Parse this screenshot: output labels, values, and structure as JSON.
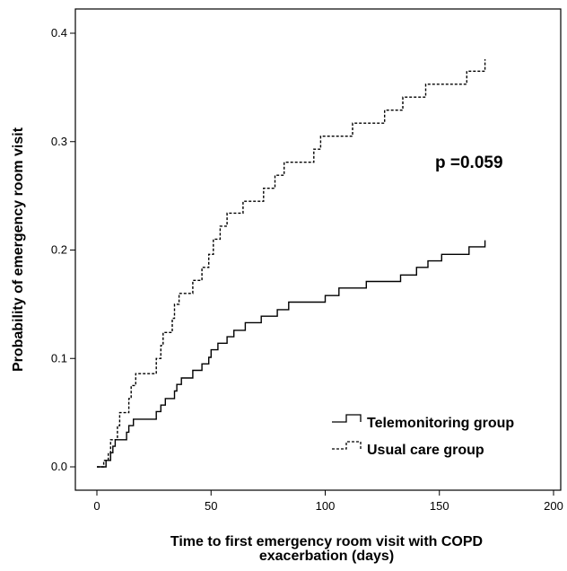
{
  "chart_data": {
    "type": "line",
    "title": "",
    "xlabel_line1": "Time to first emergency room visit with COPD",
    "xlabel_line2": "exacerbation (days)",
    "ylabel": "Probability of emergency room visit",
    "xlim": [
      0,
      200
    ],
    "ylim": [
      0,
      0.4
    ],
    "x_ticks": [
      0,
      50,
      100,
      150,
      200
    ],
    "x_tick_labels": [
      "0",
      "50",
      "100",
      "150",
      "200"
    ],
    "y_ticks": [
      0,
      0.1,
      0.2,
      0.3,
      0.4
    ],
    "y_tick_labels": [
      "0.0",
      "0.1",
      "0.2",
      "0.3",
      "0.4"
    ],
    "grid": false,
    "legend_position": "bottom-right",
    "annotation": "p =0.059",
    "series": [
      {
        "name": "Telemonitoring group",
        "style": "solid",
        "color": "#000000",
        "step_points": [
          [
            0,
            0.0
          ],
          [
            4,
            0.0
          ],
          [
            4,
            0.006
          ],
          [
            6,
            0.006
          ],
          [
            6,
            0.013
          ],
          [
            7,
            0.013
          ],
          [
            7,
            0.019
          ],
          [
            8,
            0.019
          ],
          [
            8,
            0.025
          ],
          [
            13,
            0.025
          ],
          [
            13,
            0.032
          ],
          [
            14,
            0.032
          ],
          [
            14,
            0.038
          ],
          [
            16,
            0.038
          ],
          [
            16,
            0.044
          ],
          [
            26,
            0.044
          ],
          [
            26,
            0.051
          ],
          [
            28,
            0.051
          ],
          [
            28,
            0.057
          ],
          [
            30,
            0.057
          ],
          [
            30,
            0.063
          ],
          [
            34,
            0.063
          ],
          [
            34,
            0.07
          ],
          [
            35,
            0.07
          ],
          [
            35,
            0.076
          ],
          [
            37,
            0.076
          ],
          [
            37,
            0.082
          ],
          [
            42,
            0.082
          ],
          [
            42,
            0.089
          ],
          [
            46,
            0.089
          ],
          [
            46,
            0.095
          ],
          [
            49,
            0.095
          ],
          [
            49,
            0.101
          ],
          [
            50,
            0.101
          ],
          [
            50,
            0.108
          ],
          [
            53,
            0.108
          ],
          [
            53,
            0.114
          ],
          [
            57,
            0.114
          ],
          [
            57,
            0.12
          ],
          [
            60,
            0.12
          ],
          [
            60,
            0.126
          ],
          [
            65,
            0.126
          ],
          [
            65,
            0.133
          ],
          [
            72,
            0.133
          ],
          [
            72,
            0.139
          ],
          [
            79,
            0.139
          ],
          [
            79,
            0.145
          ],
          [
            84,
            0.145
          ],
          [
            84,
            0.152
          ],
          [
            100,
            0.152
          ],
          [
            100,
            0.158
          ],
          [
            106,
            0.158
          ],
          [
            106,
            0.165
          ],
          [
            118,
            0.165
          ],
          [
            118,
            0.171
          ],
          [
            133,
            0.171
          ],
          [
            133,
            0.177
          ],
          [
            140,
            0.177
          ],
          [
            140,
            0.184
          ],
          [
            145,
            0.184
          ],
          [
            145,
            0.19
          ],
          [
            151,
            0.19
          ],
          [
            151,
            0.196
          ],
          [
            163,
            0.196
          ],
          [
            163,
            0.203
          ],
          [
            170,
            0.203
          ],
          [
            170,
            0.209
          ]
        ]
      },
      {
        "name": "Usual care group",
        "style": "dashed",
        "color": "#000000",
        "step_points": [
          [
            0,
            0.0
          ],
          [
            3,
            0.0
          ],
          [
            3,
            0.006
          ],
          [
            5,
            0.006
          ],
          [
            5,
            0.013
          ],
          [
            6,
            0.013
          ],
          [
            6,
            0.025
          ],
          [
            9,
            0.025
          ],
          [
            9,
            0.038
          ],
          [
            10,
            0.038
          ],
          [
            10,
            0.05
          ],
          [
            14,
            0.05
          ],
          [
            14,
            0.063
          ],
          [
            15,
            0.063
          ],
          [
            15,
            0.075
          ],
          [
            17,
            0.075
          ],
          [
            17,
            0.086
          ],
          [
            26,
            0.086
          ],
          [
            26,
            0.1
          ],
          [
            28,
            0.1
          ],
          [
            28,
            0.112
          ],
          [
            29,
            0.112
          ],
          [
            29,
            0.124
          ],
          [
            33,
            0.124
          ],
          [
            33,
            0.137
          ],
          [
            34,
            0.137
          ],
          [
            34,
            0.15
          ],
          [
            36,
            0.15
          ],
          [
            36,
            0.16
          ],
          [
            42,
            0.16
          ],
          [
            42,
            0.172
          ],
          [
            46,
            0.172
          ],
          [
            46,
            0.184
          ],
          [
            49,
            0.184
          ],
          [
            49,
            0.196
          ],
          [
            51,
            0.196
          ],
          [
            51,
            0.21
          ],
          [
            54,
            0.21
          ],
          [
            54,
            0.222
          ],
          [
            57,
            0.222
          ],
          [
            57,
            0.234
          ],
          [
            64,
            0.234
          ],
          [
            64,
            0.245
          ],
          [
            73,
            0.245
          ],
          [
            73,
            0.257
          ],
          [
            78,
            0.257
          ],
          [
            78,
            0.269
          ],
          [
            82,
            0.269
          ],
          [
            82,
            0.281
          ],
          [
            95,
            0.281
          ],
          [
            95,
            0.293
          ],
          [
            98,
            0.293
          ],
          [
            98,
            0.305
          ],
          [
            112,
            0.305
          ],
          [
            112,
            0.317
          ],
          [
            126,
            0.317
          ],
          [
            126,
            0.329
          ],
          [
            134,
            0.329
          ],
          [
            134,
            0.341
          ],
          [
            144,
            0.341
          ],
          [
            144,
            0.353
          ],
          [
            162,
            0.353
          ],
          [
            162,
            0.365
          ],
          [
            170,
            0.365
          ],
          [
            170,
            0.376
          ]
        ]
      }
    ]
  }
}
